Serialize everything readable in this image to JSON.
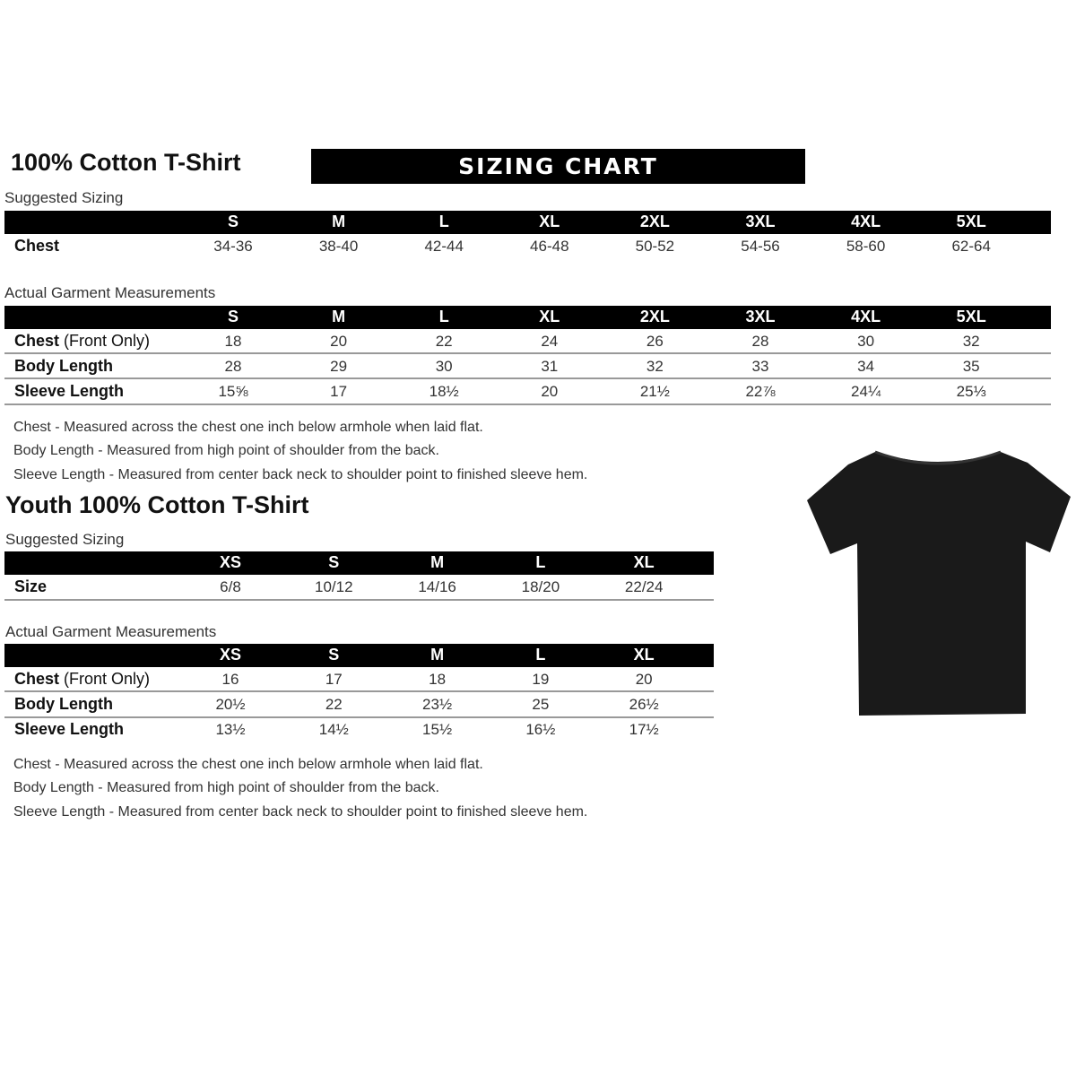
{
  "banner": "SIZING CHART",
  "adult": {
    "title": "100% Cotton T-Shirt",
    "suggested_label": "Suggested Sizing",
    "sizes": [
      "S",
      "M",
      "L",
      "XL",
      "2XL",
      "3XL",
      "4XL",
      "5XL"
    ],
    "suggested_rows": [
      {
        "label": "Chest",
        "label_extra": "",
        "values": [
          "34-36",
          "38-40",
          "42-44",
          "46-48",
          "50-52",
          "54-56",
          "58-60",
          "62-64"
        ]
      }
    ],
    "actual_label": "Actual Garment Measurements",
    "actual_rows": [
      {
        "label": "Chest",
        "label_extra": " (Front Only)",
        "values": [
          "18",
          "20",
          "22",
          "24",
          "26",
          "28",
          "30",
          "32"
        ]
      },
      {
        "label": "Body Length",
        "label_extra": "",
        "values": [
          "28",
          "29",
          "30",
          "31",
          "32",
          "33",
          "34",
          "35"
        ]
      },
      {
        "label": "Sleeve Length",
        "label_extra": "",
        "values": [
          "15⅝",
          "17",
          "18½",
          "20",
          "21½",
          "22⅞",
          "24¼",
          "25⅓"
        ]
      }
    ],
    "notes": [
      "Chest - Measured across the chest one inch below armhole when laid flat.",
      "Body Length - Measured from high point of shoulder from the back.",
      "Sleeve Length - Measured from center back neck to shoulder point to finished sleeve hem."
    ]
  },
  "youth": {
    "title": "Youth 100% Cotton T-Shirt",
    "suggested_label": "Suggested Sizing",
    "sizes": [
      "XS",
      "S",
      "M",
      "L",
      "XL"
    ],
    "suggested_rows": [
      {
        "label": "Size",
        "label_extra": "",
        "values": [
          "6/8",
          "10/12",
          "14/16",
          "18/20",
          "22/24"
        ]
      }
    ],
    "actual_label": "Actual Garment Measurements",
    "actual_rows": [
      {
        "label": "Chest",
        "label_extra": " (Front Only)",
        "values": [
          "16",
          "17",
          "18",
          "19",
          "20"
        ]
      },
      {
        "label": "Body Length",
        "label_extra": "",
        "values": [
          "20½",
          "22",
          "23½",
          "25",
          "26½"
        ]
      },
      {
        "label": "Sleeve Length",
        "label_extra": "",
        "values": [
          "13½",
          "14½",
          "15½",
          "16½",
          "17½"
        ]
      }
    ],
    "notes": [
      "Chest - Measured across the chest one inch below armhole when laid flat.",
      "Body Length - Measured from high point of shoulder from the back.",
      "Sleeve Length - Measured from center back neck to shoulder point to finished sleeve hem."
    ]
  },
  "image": {
    "icon": "black-tshirt-icon",
    "color": "#1a1a1a"
  }
}
